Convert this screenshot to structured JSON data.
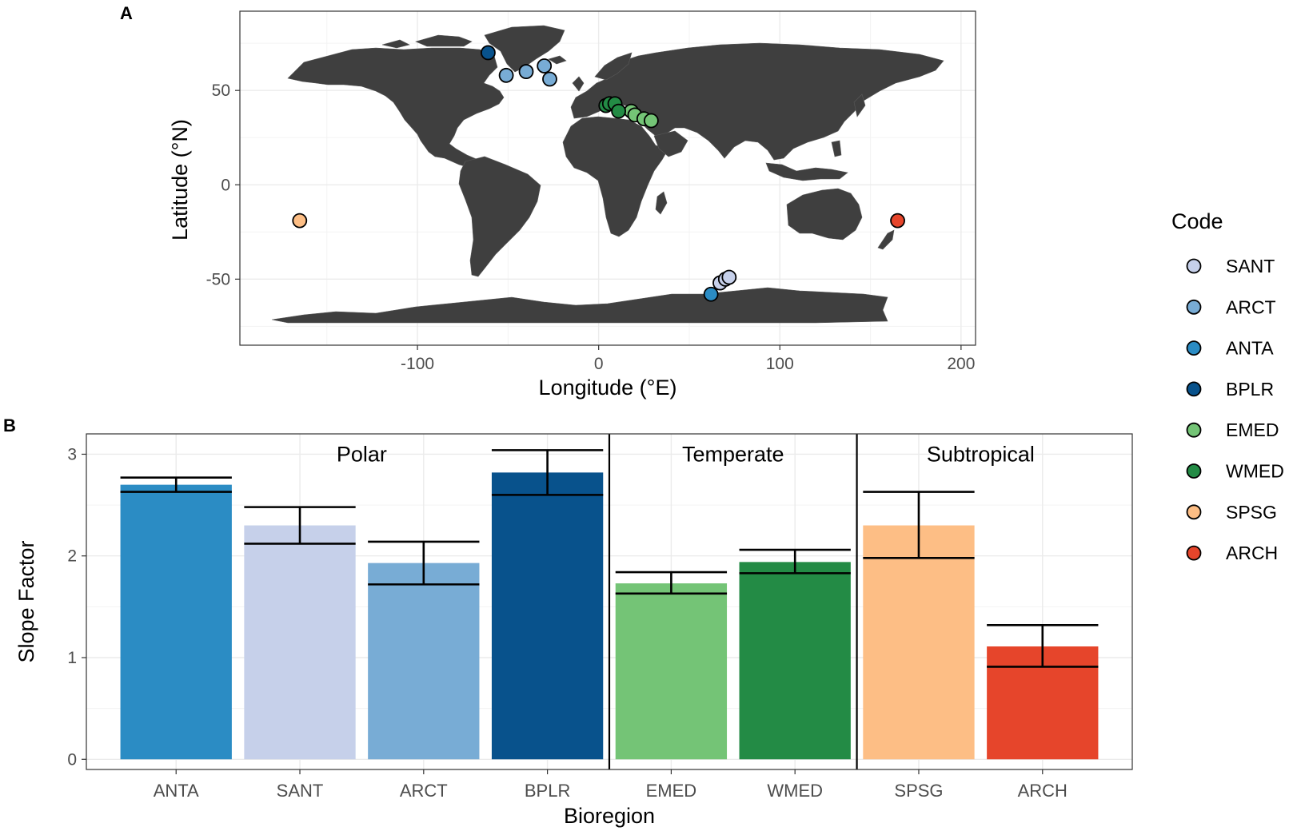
{
  "panel_a_label": "A",
  "panel_b_label": "B",
  "legend_title": "Code",
  "colors": {
    "land": "#3f3f3f",
    "grid": "#ebebeb",
    "SANT": "#c6d0ea",
    "ARCT": "#78acd5",
    "ANTA": "#2b8cc4",
    "BPLR": "#08528c",
    "EMED": "#74c476",
    "WMED": "#238b45",
    "SPSG": "#fdbe85",
    "ARCH": "#e6452b"
  },
  "chart_data": [
    {
      "type": "scatter",
      "title": "",
      "xlabel": "Longitude (°E)",
      "ylabel": "Latitude (°N)",
      "xlim": [
        -198,
        208
      ],
      "ylim": [
        -85,
        92
      ],
      "xticks": [
        -100,
        0,
        100,
        200
      ],
      "xtick_labels": [
        "-100",
        "0",
        "100",
        "200"
      ],
      "yticks": [
        -50,
        0,
        50
      ],
      "ytick_labels": [
        "-50",
        "0",
        "50"
      ],
      "background": "world map",
      "series": [
        {
          "name": "SANT",
          "points": [
            [
              67,
              -52
            ],
            [
              70,
              -50
            ],
            [
              72,
              -49
            ]
          ]
        },
        {
          "name": "ARCT",
          "points": [
            [
              -51,
              58
            ],
            [
              -40,
              60
            ],
            [
              -30,
              63
            ],
            [
              -27,
              56
            ]
          ]
        },
        {
          "name": "ANTA",
          "points": [
            [
              62,
              -58
            ]
          ]
        },
        {
          "name": "BPLR",
          "points": [
            [
              -61,
              70
            ]
          ]
        },
        {
          "name": "EMED",
          "points": [
            [
              18,
              39
            ],
            [
              20,
              37
            ],
            [
              25,
              35
            ],
            [
              29,
              34
            ]
          ]
        },
        {
          "name": "WMED",
          "points": [
            [
              4,
              42
            ],
            [
              6,
              43
            ],
            [
              9,
              43
            ],
            [
              11,
              39
            ]
          ]
        },
        {
          "name": "SPSG",
          "points": [
            [
              -165,
              -19
            ]
          ]
        },
        {
          "name": "ARCH",
          "points": [
            [
              165,
              -19
            ]
          ]
        }
      ]
    },
    {
      "type": "bar",
      "title": "",
      "xlabel": "Bioregion",
      "ylabel": "Slope Factor",
      "ylim": [
        -0.1,
        3.2
      ],
      "yticks": [
        0,
        1,
        2,
        3
      ],
      "ytick_labels": [
        "0",
        "1",
        "2",
        "3"
      ],
      "categories": [
        "ANTA",
        "SANT",
        "ARCT",
        "BPLR",
        "EMED",
        "WMED",
        "SPSG",
        "ARCH"
      ],
      "values": [
        2.7,
        2.3,
        1.93,
        2.82,
        1.73,
        1.94,
        2.3,
        1.11
      ],
      "error_low": [
        2.63,
        2.12,
        1.72,
        2.6,
        1.63,
        1.83,
        1.98,
        0.91
      ],
      "error_high": [
        2.77,
        2.48,
        2.14,
        3.04,
        1.84,
        2.06,
        2.63,
        1.32
      ],
      "groups": [
        {
          "label": "Polar",
          "from": 0,
          "to": 3
        },
        {
          "label": "Temperate",
          "from": 4,
          "to": 5
        },
        {
          "label": "Subtropical",
          "from": 6,
          "to": 7
        }
      ]
    }
  ]
}
